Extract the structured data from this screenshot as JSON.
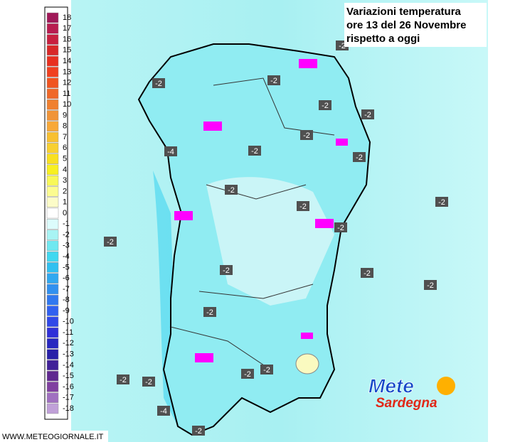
{
  "title_lines": [
    "Variazioni temperatura",
    "ore 13 del 26 Novembre",
    "rispetto a oggi"
  ],
  "legend": [
    {
      "value": 18,
      "color": "#a01858"
    },
    {
      "value": 17,
      "color": "#b81c50"
    },
    {
      "value": 16,
      "color": "#c82040"
    },
    {
      "value": 15,
      "color": "#d82828"
    },
    {
      "value": 14,
      "color": "#e83020"
    },
    {
      "value": 13,
      "color": "#f04020"
    },
    {
      "value": 12,
      "color": "#f05420"
    },
    {
      "value": 11,
      "color": "#f06828"
    },
    {
      "value": 10,
      "color": "#f08030"
    },
    {
      "value": 9,
      "color": "#f09438"
    },
    {
      "value": 8,
      "color": "#f8a838"
    },
    {
      "value": 7,
      "color": "#f8c030"
    },
    {
      "value": 6,
      "color": "#f8d030"
    },
    {
      "value": 5,
      "color": "#f8e020"
    },
    {
      "value": 4,
      "color": "#f8f020"
    },
    {
      "value": 3,
      "color": "#f8f858"
    },
    {
      "value": 2,
      "color": "#fcfc90"
    },
    {
      "value": 1,
      "color": "#fcfcc8"
    },
    {
      "value": 0,
      "color": "#ffffff"
    },
    {
      "value": -1,
      "color": "#dcfcfc"
    },
    {
      "value": -2,
      "color": "#a8f4f4"
    },
    {
      "value": -3,
      "color": "#70e8f0"
    },
    {
      "value": -4,
      "color": "#40d8f0"
    },
    {
      "value": -5,
      "color": "#30c0f0"
    },
    {
      "value": -6,
      "color": "#30a8f0"
    },
    {
      "value": -7,
      "color": "#3090f0"
    },
    {
      "value": -8,
      "color": "#3078f0"
    },
    {
      "value": -9,
      "color": "#3060f0"
    },
    {
      "value": -10,
      "color": "#3048e8"
    },
    {
      "value": -11,
      "color": "#3030d8"
    },
    {
      "value": -12,
      "color": "#2828c0"
    },
    {
      "value": -13,
      "color": "#2820a8"
    },
    {
      "value": -14,
      "color": "#402098"
    },
    {
      "value": -15,
      "color": "#602890"
    },
    {
      "value": -16,
      "color": "#8040a0"
    },
    {
      "value": -17,
      "color": "#a070c0"
    },
    {
      "value": -18,
      "color": "#c0a0d8"
    }
  ],
  "map_labels": [
    -2,
    -2,
    -2,
    -2,
    -2,
    -2,
    -2,
    -4,
    -2,
    -2,
    -2,
    -2,
    -2,
    -2,
    -2,
    -2,
    -2,
    -2,
    -2,
    -2,
    -2,
    -2,
    -4,
    -2
  ],
  "watermark": "WWW.METEOGIORNALE.IT",
  "logo": {
    "line1": "Mete",
    "line2": "Sardegna"
  }
}
